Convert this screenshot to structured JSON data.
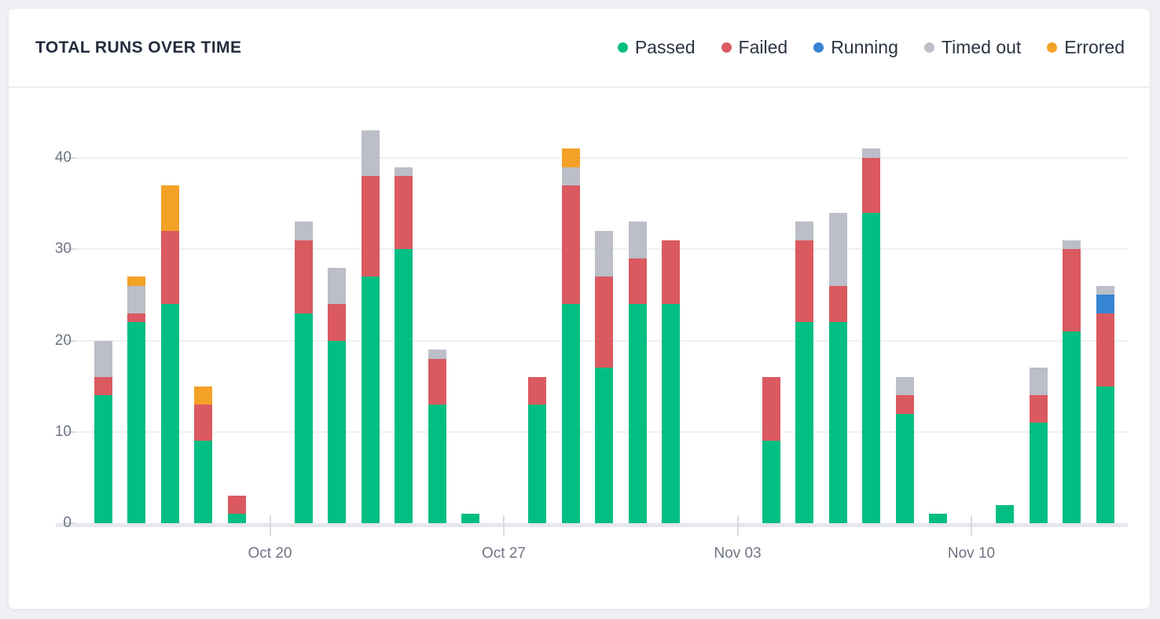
{
  "card": {
    "title": "TOTAL RUNS OVER TIME"
  },
  "colors": {
    "passed": "#03be82",
    "failed": "#da5a60",
    "running": "#3684d3",
    "timed_out": "#bcbec8",
    "errored": "#f4a128",
    "page_bg": "#eef0f4",
    "card_bg": "#ffffff",
    "gridline": "#eef0f3",
    "axis_line": "#e5e7ec",
    "tick": "#d9dbe0",
    "title_text": "#232c3d",
    "legend_text": "#2b3442",
    "axis_text": "#6d7482"
  },
  "chart_data": {
    "type": "bar",
    "stacked": true,
    "title": "TOTAL RUNS OVER TIME",
    "grid": "horizontal",
    "legend_position": "top-right",
    "ylim": [
      0,
      44
    ],
    "yticks": [
      0,
      10,
      20,
      30,
      40
    ],
    "categories": [
      "Oct 15",
      "Oct 16",
      "Oct 17",
      "Oct 18",
      "Oct 19",
      "Oct 20",
      "Oct 21",
      "Oct 22",
      "Oct 23",
      "Oct 24",
      "Oct 25",
      "Oct 26",
      "Oct 27",
      "Oct 28",
      "Oct 29",
      "Oct 30",
      "Oct 31",
      "Nov 01",
      "Nov 02",
      "Nov 03",
      "Nov 04",
      "Nov 05",
      "Nov 06",
      "Nov 07",
      "Nov 08",
      "Nov 09",
      "Nov 10",
      "Nov 11",
      "Nov 12",
      "Nov 13",
      "Nov 14"
    ],
    "xticks": [
      {
        "index": 5,
        "label": "Oct 20"
      },
      {
        "index": 12,
        "label": "Oct 27"
      },
      {
        "index": 19,
        "label": "Nov 03"
      },
      {
        "index": 26,
        "label": "Nov 10"
      }
    ],
    "series": [
      {
        "name": "Passed",
        "color": "#03be82",
        "values": [
          14,
          22,
          24,
          9,
          1,
          0,
          23,
          20,
          27,
          30,
          13,
          1,
          0,
          13,
          24,
          17,
          24,
          24,
          0,
          0,
          9,
          22,
          22,
          34,
          12,
          1,
          0,
          2,
          11,
          21,
          15
        ]
      },
      {
        "name": "Failed",
        "color": "#da5a60",
        "values": [
          2,
          1,
          8,
          4,
          2,
          0,
          8,
          4,
          11,
          8,
          5,
          0,
          0,
          3,
          13,
          10,
          5,
          7,
          0,
          0,
          7,
          9,
          4,
          6,
          2,
          0,
          0,
          0,
          3,
          9,
          8
        ]
      },
      {
        "name": "Running",
        "color": "#3684d3",
        "values": [
          0,
          0,
          0,
          0,
          0,
          0,
          0,
          0,
          0,
          0,
          0,
          0,
          0,
          0,
          0,
          0,
          0,
          0,
          0,
          0,
          0,
          0,
          0,
          0,
          0,
          0,
          0,
          0,
          0,
          0,
          2
        ]
      },
      {
        "name": "Timed out",
        "color": "#bcbec8",
        "values": [
          4,
          3,
          0,
          0,
          0,
          0,
          2,
          4,
          5,
          1,
          1,
          0,
          0,
          0,
          2,
          5,
          4,
          0,
          0,
          0,
          0,
          2,
          8,
          1,
          2,
          0,
          0,
          0,
          3,
          1,
          1
        ]
      },
      {
        "name": "Errored",
        "color": "#f4a128",
        "values": [
          0,
          1,
          5,
          2,
          0,
          0,
          0,
          0,
          0,
          0,
          0,
          0,
          0,
          0,
          2,
          0,
          0,
          0,
          0,
          0,
          0,
          0,
          0,
          0,
          0,
          0,
          0,
          0,
          0,
          0,
          0
        ]
      }
    ],
    "totals": [
      20,
      27,
      37,
      15,
      3,
      0,
      33,
      28,
      43,
      39,
      19,
      1,
      0,
      16,
      41,
      32,
      33,
      31,
      0,
      0,
      16,
      33,
      34,
      41,
      16,
      1,
      0,
      2,
      17,
      31,
      26
    ]
  }
}
